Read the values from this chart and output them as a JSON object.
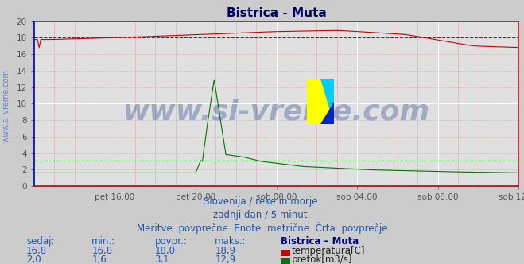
{
  "title": "Bistrica - Muta",
  "background_color": "#cccccc",
  "plot_bg_color": "#e0e0e0",
  "xlim": [
    0,
    288
  ],
  "ylim": [
    0,
    20
  ],
  "xtick_labels": [
    "pet 16:00",
    "pet 20:00",
    "sob 00:00",
    "sob 04:00",
    "sob 08:00",
    "sob 12:00"
  ],
  "xtick_positions": [
    48,
    96,
    144,
    192,
    240,
    288
  ],
  "temp_color": "#cc0000",
  "flow_color": "#007700",
  "height_color": "#0000cc",
  "dashed_temp_value": 18.0,
  "dashed_flow_value": 3.1,
  "watermark_text": "www.si-vreme.com",
  "watermark_color": "#1a3a8a",
  "watermark_alpha": 0.32,
  "watermark_fontsize": 26,
  "subtitle1": "Slovenija / reke in morje.",
  "subtitle2": "zadnji dan / 5 minut.",
  "subtitle3": "Meritve: povprečne  Enote: metrične  Črta: povprečje",
  "subtitle_color": "#2255aa",
  "subtitle_fontsize": 8.5,
  "table_header": [
    "sedaj:",
    "min.:",
    "povpr.:",
    "maks.:",
    "Bistrica – Muta"
  ],
  "table_row1": [
    "16,8",
    "16,8",
    "18,0",
    "18,9"
  ],
  "table_row2": [
    "2,0",
    "1,6",
    "3,1",
    "12,9"
  ],
  "table_label1": "temperatura[C]",
  "table_label2": "pretok[m3/s]",
  "table_color": "#2255aa",
  "table_header_bold_color": "#000077",
  "table_fontsize": 8.5,
  "tick_fontsize": 7.5,
  "title_fontsize": 11,
  "title_color": "#000066",
  "sidewatermark_text": "www.si-vreme.com",
  "sidewatermark_color": "#3366bb",
  "sidewatermark_fontsize": 7
}
